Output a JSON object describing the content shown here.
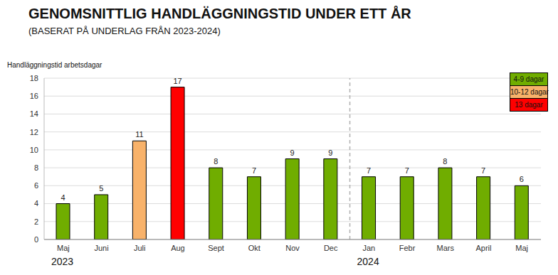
{
  "chart_data": {
    "type": "bar",
    "title": "GENOMSNITTLIG HANDLÄGGNINGSTID UNDER ETT ÅR",
    "subtitle": "(BASERAT PÅ UNDERLAG FRÅN 2023-2024)",
    "y_label": "Handläggningstid arbetsdagar",
    "categories": [
      "Maj",
      "Juni",
      "Juli",
      "Aug",
      "Sept",
      "Okt",
      "Nov",
      "Dec",
      "Jan",
      "Febr",
      "Mars",
      "April",
      "Maj"
    ],
    "values": [
      4,
      5,
      11,
      17,
      8,
      7,
      9,
      9,
      7,
      7,
      8,
      7,
      6
    ],
    "colors": [
      "#70ad00",
      "#70ad00",
      "#f8b26a",
      "#ff0000",
      "#70ad00",
      "#70ad00",
      "#70ad00",
      "#70ad00",
      "#70ad00",
      "#70ad00",
      "#70ad00",
      "#70ad00",
      "#70ad00"
    ],
    "groups": [
      {
        "label": "2023",
        "count": 8
      },
      {
        "label": "2024",
        "count": 5
      }
    ],
    "ylim": [
      0,
      18
    ],
    "yticks": [
      0,
      2,
      4,
      6,
      8,
      10,
      12,
      14,
      16,
      18
    ],
    "grid": true,
    "data_labels": true,
    "legend": "top right",
    "legend_entries": [
      {
        "name": "4-9 dagar",
        "color": "#70ad00"
      },
      {
        "name": "10-12 dagar",
        "color": "#f8b26a"
      },
      {
        "name": "13 dagar",
        "color": "#ff0000"
      }
    ]
  }
}
